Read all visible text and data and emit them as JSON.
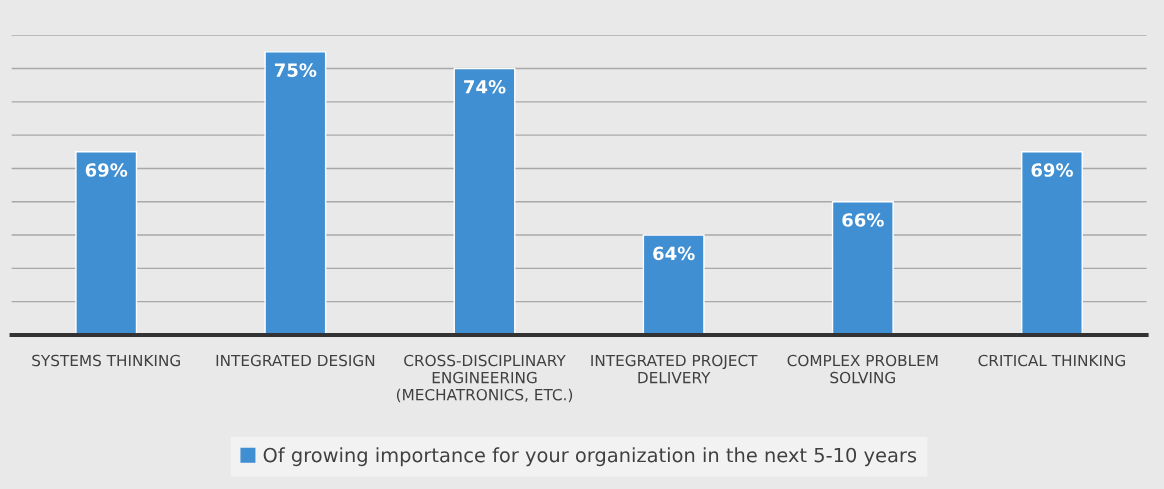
{
  "chart_data": {
    "type": "bar",
    "categories": [
      "SYSTEMS THINKING",
      "INTEGRATED DESIGN",
      "CROSS-DISCIPLINARY\nENGINEERING\n(MECHATRONICS, ETC.)",
      "INTEGRATED PROJECT\nDELIVERY",
      "COMPLEX PROBLEM\nSOLVING",
      "CRITICAL THINKING"
    ],
    "series": [
      {
        "name": "Of growing importance for your organization in the next 5-10 years",
        "color": "#3f8fd2",
        "values": [
          69,
          75,
          74,
          64,
          66,
          69
        ],
        "value_labels": [
          "69%",
          "75%",
          "74%",
          "64%",
          "66%",
          "69%"
        ]
      }
    ],
    "ylim": [
      58,
      76
    ],
    "yticks": [
      {
        "value": 58,
        "label": null
      },
      {
        "value": 60,
        "label": null
      },
      {
        "value": 62,
        "label": null
      },
      {
        "value": 64,
        "label": null
      },
      {
        "value": 66,
        "label": null
      },
      {
        "value": 68,
        "label": null
      },
      {
        "value": 70,
        "label": null
      },
      {
        "value": 72,
        "label": null
      },
      {
        "value": 74,
        "label": null
      },
      {
        "value": 76,
        "label": null
      }
    ],
    "tick_labels": "x",
    "grid": "y",
    "legend": "bottom"
  }
}
